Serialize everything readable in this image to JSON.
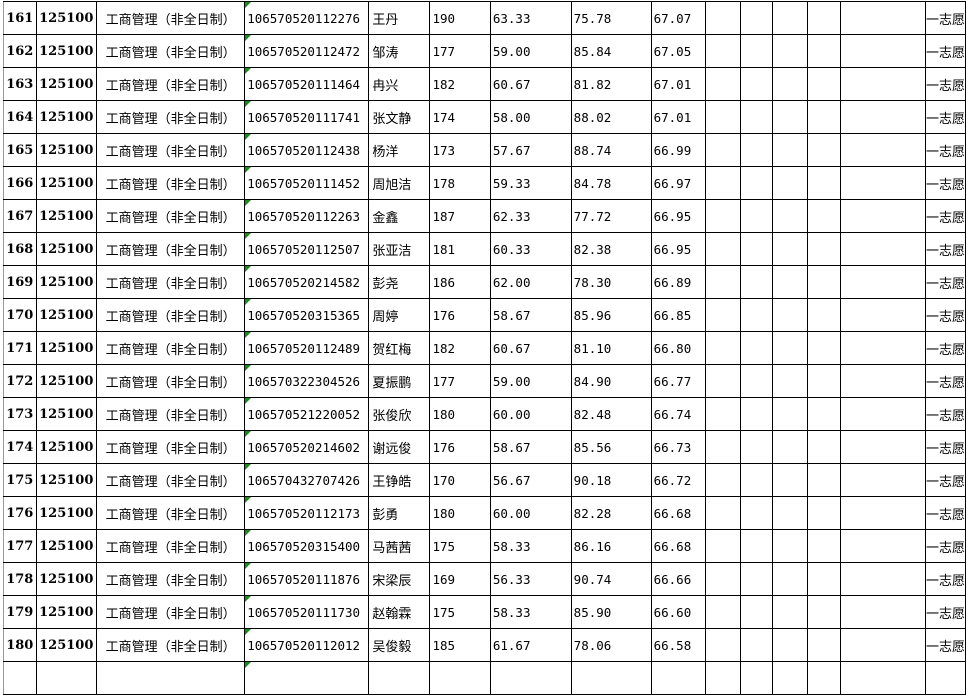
{
  "colors": {
    "grid": "#000000",
    "comment_marker": "#1a8a1a"
  },
  "rows": [
    {
      "rank": "161",
      "code": "125100",
      "major": "工商管理（非全日制）",
      "id": "106570520112276",
      "name": "王丹",
      "s1": "190",
      "s2": "63.33",
      "s3": "75.78",
      "total": "67.07",
      "wish": "一志愿"
    },
    {
      "rank": "162",
      "code": "125100",
      "major": "工商管理（非全日制）",
      "id": "106570520112472",
      "name": "邹涛",
      "s1": "177",
      "s2": "59.00",
      "s3": "85.84",
      "total": "67.05",
      "wish": "一志愿"
    },
    {
      "rank": "163",
      "code": "125100",
      "major": "工商管理（非全日制）",
      "id": "106570520111464",
      "name": "冉兴",
      "s1": "182",
      "s2": "60.67",
      "s3": "81.82",
      "total": "67.01",
      "wish": "一志愿"
    },
    {
      "rank": "164",
      "code": "125100",
      "major": "工商管理（非全日制）",
      "id": "106570520111741",
      "name": "张文静",
      "s1": "174",
      "s2": "58.00",
      "s3": "88.02",
      "total": "67.01",
      "wish": "一志愿"
    },
    {
      "rank": "165",
      "code": "125100",
      "major": "工商管理（非全日制）",
      "id": "106570520112438",
      "name": "杨洋",
      "s1": "173",
      "s2": "57.67",
      "s3": "88.74",
      "total": "66.99",
      "wish": "一志愿"
    },
    {
      "rank": "166",
      "code": "125100",
      "major": "工商管理（非全日制）",
      "id": "106570520111452",
      "name": "周旭洁",
      "s1": "178",
      "s2": "59.33",
      "s3": "84.78",
      "total": "66.97",
      "wish": "一志愿"
    },
    {
      "rank": "167",
      "code": "125100",
      "major": "工商管理（非全日制）",
      "id": "106570520112263",
      "name": "金鑫",
      "s1": "187",
      "s2": "62.33",
      "s3": "77.72",
      "total": "66.95",
      "wish": "一志愿"
    },
    {
      "rank": "168",
      "code": "125100",
      "major": "工商管理（非全日制）",
      "id": "106570520112507",
      "name": "张亚洁",
      "s1": "181",
      "s2": "60.33",
      "s3": "82.38",
      "total": "66.95",
      "wish": "一志愿"
    },
    {
      "rank": "169",
      "code": "125100",
      "major": "工商管理（非全日制）",
      "id": "106570520214582",
      "name": "彭尧",
      "s1": "186",
      "s2": "62.00",
      "s3": "78.30",
      "total": "66.89",
      "wish": "一志愿"
    },
    {
      "rank": "170",
      "code": "125100",
      "major": "工商管理（非全日制）",
      "id": "106570520315365",
      "name": "周婷",
      "s1": "176",
      "s2": "58.67",
      "s3": "85.96",
      "total": "66.85",
      "wish": "一志愿"
    },
    {
      "rank": "171",
      "code": "125100",
      "major": "工商管理（非全日制）",
      "id": "106570520112489",
      "name": "贺红梅",
      "s1": "182",
      "s2": "60.67",
      "s3": "81.10",
      "total": "66.80",
      "wish": "一志愿"
    },
    {
      "rank": "172",
      "code": "125100",
      "major": "工商管理（非全日制）",
      "id": "106570322304526",
      "name": "夏振鹏",
      "s1": "177",
      "s2": "59.00",
      "s3": "84.90",
      "total": "66.77",
      "wish": "一志愿"
    },
    {
      "rank": "173",
      "code": "125100",
      "major": "工商管理（非全日制）",
      "id": "106570521220052",
      "name": "张俊欣",
      "s1": "180",
      "s2": "60.00",
      "s3": "82.48",
      "total": "66.74",
      "wish": "一志愿"
    },
    {
      "rank": "174",
      "code": "125100",
      "major": "工商管理（非全日制）",
      "id": "106570520214602",
      "name": "谢远俊",
      "s1": "176",
      "s2": "58.67",
      "s3": "85.56",
      "total": "66.73",
      "wish": "一志愿"
    },
    {
      "rank": "175",
      "code": "125100",
      "major": "工商管理（非全日制）",
      "id": "106570432707426",
      "name": "王铮皓",
      "s1": "170",
      "s2": "56.67",
      "s3": "90.18",
      "total": "66.72",
      "wish": "一志愿"
    },
    {
      "rank": "176",
      "code": "125100",
      "major": "工商管理（非全日制）",
      "id": "106570520112173",
      "name": "彭勇",
      "s1": "180",
      "s2": "60.00",
      "s3": "82.28",
      "total": "66.68",
      "wish": "一志愿"
    },
    {
      "rank": "177",
      "code": "125100",
      "major": "工商管理（非全日制）",
      "id": "106570520315400",
      "name": "马茜茜",
      "s1": "175",
      "s2": "58.33",
      "s3": "86.16",
      "total": "66.68",
      "wish": "一志愿"
    },
    {
      "rank": "178",
      "code": "125100",
      "major": "工商管理（非全日制）",
      "id": "106570520111876",
      "name": "宋梁辰",
      "s1": "169",
      "s2": "56.33",
      "s3": "90.74",
      "total": "66.66",
      "wish": "一志愿"
    },
    {
      "rank": "179",
      "code": "125100",
      "major": "工商管理（非全日制）",
      "id": "106570520111730",
      "name": "赵翰霖",
      "s1": "175",
      "s2": "58.33",
      "s3": "85.90",
      "total": "66.60",
      "wish": "一志愿"
    },
    {
      "rank": "180",
      "code": "125100",
      "major": "工商管理（非全日制）",
      "id": "106570520112012",
      "name": "吴俊毅",
      "s1": "185",
      "s2": "61.67",
      "s3": "78.06",
      "total": "66.58",
      "wish": "一志愿"
    }
  ]
}
